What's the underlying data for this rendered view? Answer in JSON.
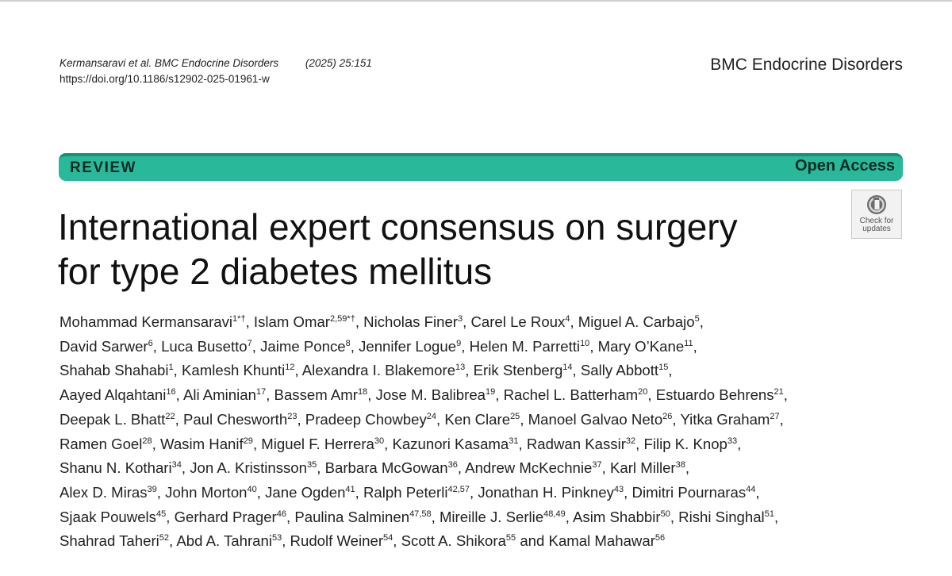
{
  "header": {
    "citation_authors": "Kermansaravi et al. BMC Endocrine Disorders",
    "citation_year_volume": "(2025) 25:151",
    "doi": "https://doi.org/10.1186/s12902-025-01961-w",
    "journal_name": "BMC Endocrine Disorders"
  },
  "band": {
    "article_type": "REVIEW",
    "access": "Open Access",
    "color": "#29b99a"
  },
  "check_updates": {
    "line1": "Check for",
    "line2": "updates"
  },
  "title": {
    "line1": "International expert consensus on surgery",
    "line2": "for type 2 diabetes mellitus"
  },
  "authors": [
    {
      "name": "Mohammad Kermansaravi",
      "aff": "1*†"
    },
    {
      "name": "Islam Omar",
      "aff": "2,59*†"
    },
    {
      "name": "Nicholas Finer",
      "aff": "3"
    },
    {
      "name": "Carel Le Roux",
      "aff": "4"
    },
    {
      "name": "Miguel A. Carbajo",
      "aff": "5"
    },
    {
      "name": "David Sarwer",
      "aff": "6"
    },
    {
      "name": "Luca Busetto",
      "aff": "7"
    },
    {
      "name": "Jaime Ponce",
      "aff": "8"
    },
    {
      "name": "Jennifer Logue",
      "aff": "9"
    },
    {
      "name": "Helen M. Parretti",
      "aff": "10"
    },
    {
      "name": "Mary O’Kane",
      "aff": "11"
    },
    {
      "name": "Shahab Shahabi",
      "aff": "1"
    },
    {
      "name": "Kamlesh Khunti",
      "aff": "12"
    },
    {
      "name": "Alexandra I. Blakemore",
      "aff": "13"
    },
    {
      "name": "Erik Stenberg",
      "aff": "14"
    },
    {
      "name": "Sally Abbott",
      "aff": "15"
    },
    {
      "name": "Aayed Alqahtani",
      "aff": "16"
    },
    {
      "name": "Ali Aminian",
      "aff": "17"
    },
    {
      "name": "Bassem Amr",
      "aff": "18"
    },
    {
      "name": "Jose M. Balibrea",
      "aff": "19"
    },
    {
      "name": "Rachel L. Batterham",
      "aff": "20"
    },
    {
      "name": "Estuardo Behrens",
      "aff": "21"
    },
    {
      "name": "Deepak L. Bhatt",
      "aff": "22"
    },
    {
      "name": "Paul Chesworth",
      "aff": "23"
    },
    {
      "name": "Pradeep Chowbey",
      "aff": "24"
    },
    {
      "name": "Ken Clare",
      "aff": "25"
    },
    {
      "name": "Manoel Galvao Neto",
      "aff": "26"
    },
    {
      "name": "Yitka Graham",
      "aff": "27"
    },
    {
      "name": "Ramen Goel",
      "aff": "28"
    },
    {
      "name": "Wasim Hanif",
      "aff": "29"
    },
    {
      "name": "Miguel F. Herrera",
      "aff": "30"
    },
    {
      "name": "Kazunori Kasama",
      "aff": "31"
    },
    {
      "name": "Radwan Kassir",
      "aff": "32"
    },
    {
      "name": "Filip K. Knop",
      "aff": "33"
    },
    {
      "name": "Shanu N. Kothari",
      "aff": "34"
    },
    {
      "name": "Jon A. Kristinsson",
      "aff": "35"
    },
    {
      "name": "Barbara McGowan",
      "aff": "36"
    },
    {
      "name": "Andrew McKechnie",
      "aff": "37"
    },
    {
      "name": "Karl Miller",
      "aff": "38"
    },
    {
      "name": "Alex D. Miras",
      "aff": "39"
    },
    {
      "name": "John Morton",
      "aff": "40"
    },
    {
      "name": "Jane Ogden",
      "aff": "41"
    },
    {
      "name": "Ralph Peterli",
      "aff": "42,57"
    },
    {
      "name": "Jonathan H. Pinkney",
      "aff": "43"
    },
    {
      "name": "Dimitri Pournaras",
      "aff": "44"
    },
    {
      "name": "Sjaak Pouwels",
      "aff": "45"
    },
    {
      "name": "Gerhard Prager",
      "aff": "46"
    },
    {
      "name": "Paulina Salminen",
      "aff": "47,58"
    },
    {
      "name": "Mireille J. Serlie",
      "aff": "48,49"
    },
    {
      "name": "Asim Shabbir",
      "aff": "50"
    },
    {
      "name": "Rishi Singhal",
      "aff": "51"
    },
    {
      "name": "Shahrad Taheri",
      "aff": "52"
    },
    {
      "name": "Abd A. Tahrani",
      "aff": "53"
    },
    {
      "name": "Rudolf Weiner",
      "aff": "54"
    },
    {
      "name": "Scott A. Shikora",
      "aff": "55"
    },
    {
      "name": "Kamal Mahawar",
      "aff": "56"
    }
  ],
  "last_author_joiner": "and"
}
